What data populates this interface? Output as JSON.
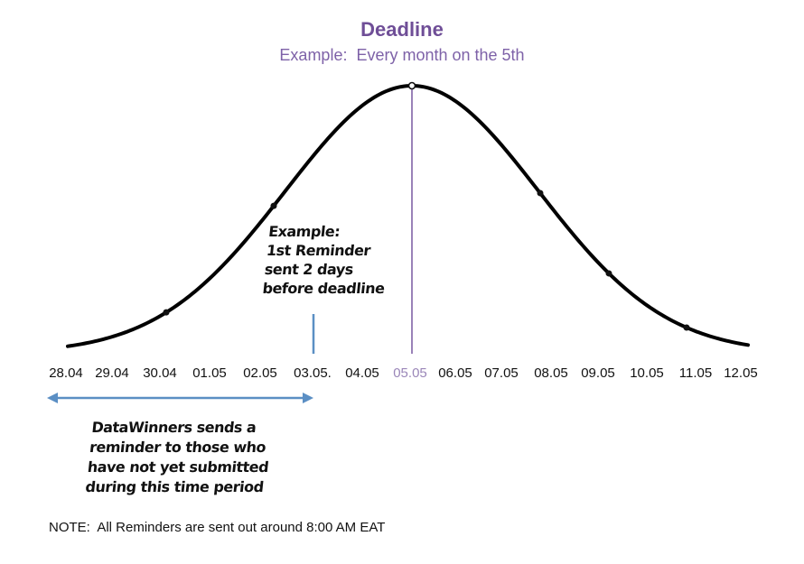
{
  "deadline": {
    "title": "Deadline",
    "subtitle": "Example:  Every month on the 5th",
    "title_color": "#6f4e97",
    "line_color": "#8f74b0"
  },
  "dates": [
    "28.04",
    "29.04",
    "30.04",
    "01.05",
    "02.05",
    "03.05.",
    "04.05",
    "05.05",
    "06.05",
    "07.05",
    "08.05",
    "09.05",
    "10.05",
    "11.05",
    "12.05"
  ],
  "highlight_date": "05.05",
  "reminder_note": "Example:\n1st Reminder\nsent 2 days\nbefore deadline",
  "period_note": "DataWinners sends a\nreminder to those who\nhave not yet submitted\nduring this time period",
  "footer_note": "NOTE:  All Reminders are sent out around 8:00 AM EAT",
  "colors": {
    "curve": "#000000",
    "reminder_marker": "#5b8fc4",
    "period_arrow": "#5b8fc4"
  }
}
